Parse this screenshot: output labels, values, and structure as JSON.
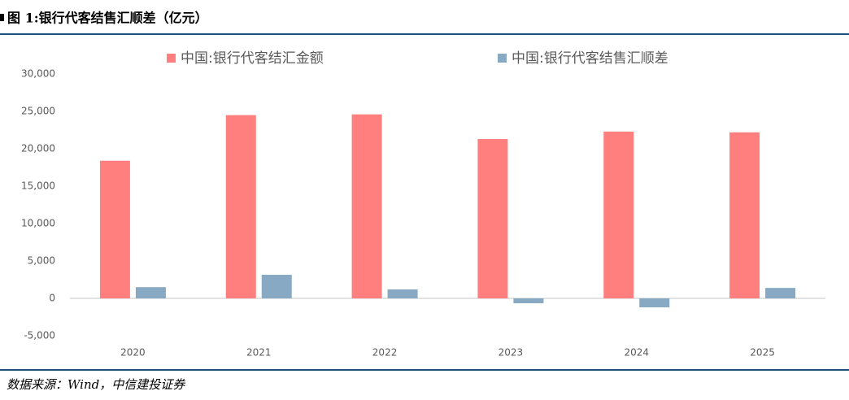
{
  "chart_data": {
    "type": "bar",
    "title": "图 1:银行代客结售汇顺差（亿元）",
    "categories": [
      "2020",
      "2021",
      "2022",
      "2023",
      "2024",
      "2025"
    ],
    "series": [
      {
        "name": "中国:银行代客结汇金额",
        "color": "#ff7f7f",
        "values": [
          18400,
          24500,
          24600,
          21300,
          22300,
          22200
        ]
      },
      {
        "name": "中国:银行代客结售汇顺差",
        "color": "#87a9c3",
        "values": [
          1500,
          3150,
          1200,
          -650,
          -1200,
          1400
        ]
      }
    ],
    "ylim": [
      -5000,
      30000
    ],
    "yticks": [
      {
        "value": -5000,
        "label": "-5,000"
      },
      0,
      {
        "value": 5000,
        "label": "5,000"
      },
      {
        "value": 10000,
        "label": "10,000"
      },
      {
        "value": 15000,
        "label": "15,000"
      },
      {
        "value": 20000,
        "label": "20,000"
      },
      {
        "value": 25000,
        "label": "25,000"
      },
      {
        "value": 30000,
        "label": "30,000"
      }
    ],
    "grid": false
  },
  "source": "数据来源：Wind，中信建投证券"
}
